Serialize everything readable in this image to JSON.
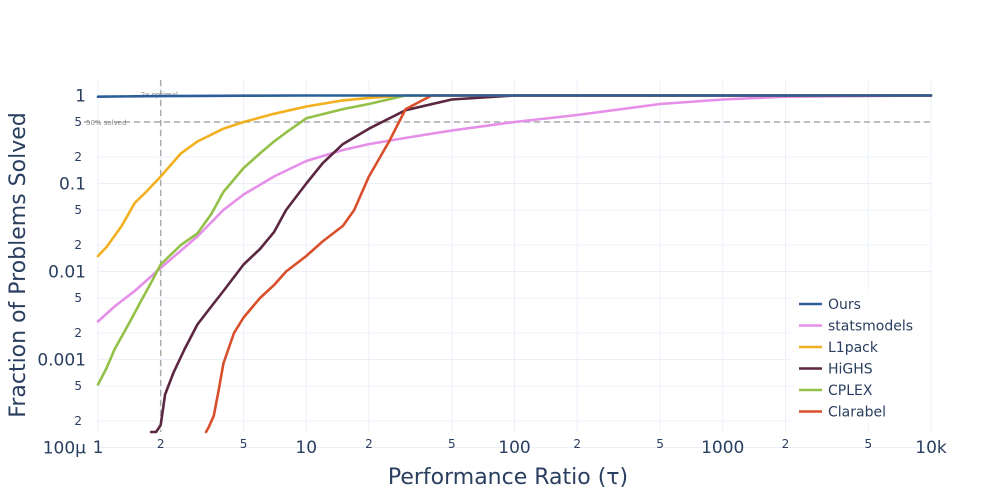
{
  "chart_data": {
    "type": "line",
    "title": "",
    "xlabel": "Performance Ratio (τ)",
    "ylabel": "Fraction of Problems Solved",
    "xscale": "log",
    "yscale": "log",
    "xlim": [
      0.95,
      10000
    ],
    "ylim": [
      0.00015,
      1.5
    ],
    "grid": true,
    "legend_position": "bottom-right",
    "x_major_ticks": [
      {
        "v": 1,
        "label": "1"
      },
      {
        "v": 10,
        "label": "10"
      },
      {
        "v": 100,
        "label": "100"
      },
      {
        "v": 1000,
        "label": "1000"
      },
      {
        "v": 10000,
        "label": "10k"
      }
    ],
    "x_minor_ticks": [
      {
        "v": 2,
        "label": "2"
      },
      {
        "v": 5,
        "label": "5"
      },
      {
        "v": 20,
        "label": "2"
      },
      {
        "v": 50,
        "label": "5"
      },
      {
        "v": 200,
        "label": "2"
      },
      {
        "v": 500,
        "label": "5"
      },
      {
        "v": 2000,
        "label": "2"
      },
      {
        "v": 5000,
        "label": "5"
      }
    ],
    "y_major_ticks": [
      {
        "v": 1,
        "label": "1"
      },
      {
        "v": 0.1,
        "label": "0.1"
      },
      {
        "v": 0.01,
        "label": "0.01"
      },
      {
        "v": 0.001,
        "label": "0.001"
      },
      {
        "v": 0.0001,
        "label": "100μ"
      }
    ],
    "y_minor_ticks": [
      {
        "v": 0.5,
        "label": "5"
      },
      {
        "v": 0.2,
        "label": "2"
      },
      {
        "v": 0.05,
        "label": "5"
      },
      {
        "v": 0.02,
        "label": "2"
      },
      {
        "v": 0.005,
        "label": "5"
      },
      {
        "v": 0.002,
        "label": "2"
      },
      {
        "v": 0.0005,
        "label": "5"
      },
      {
        "v": 0.0002,
        "label": "2"
      }
    ],
    "reference_lines": [
      {
        "axis": "x",
        "value": 2,
        "label": "2x optimal"
      },
      {
        "axis": "y",
        "value": 0.5,
        "label": "50% solved"
      }
    ],
    "series": [
      {
        "name": "Ours",
        "color": "#2c5f99",
        "x": [
          1,
          1.5,
          2,
          3,
          5,
          10,
          10000
        ],
        "y": [
          0.97,
          0.98,
          0.985,
          0.99,
          0.995,
          1.0,
          1.0
        ]
      },
      {
        "name": "statsmodels",
        "color": "#e58fe8",
        "x": [
          1,
          1.2,
          1.5,
          2,
          3,
          4,
          5,
          7,
          10,
          15,
          20,
          30,
          50,
          100,
          200,
          500,
          1000,
          2000,
          10000
        ],
        "y": [
          0.0027,
          0.004,
          0.006,
          0.011,
          0.025,
          0.05,
          0.075,
          0.12,
          0.18,
          0.24,
          0.28,
          0.33,
          0.4,
          0.5,
          0.6,
          0.8,
          0.9,
          0.97,
          1.0
        ]
      },
      {
        "name": "L1pack",
        "color": "#f2b01e",
        "x": [
          1,
          1.1,
          1.3,
          1.5,
          1.7,
          2,
          2.5,
          3,
          4,
          5,
          7,
          10,
          15,
          20,
          30,
          100,
          10000
        ],
        "y": [
          0.015,
          0.019,
          0.033,
          0.06,
          0.08,
          0.12,
          0.22,
          0.3,
          0.42,
          0.5,
          0.62,
          0.75,
          0.88,
          0.94,
          1.0,
          1.0,
          1.0
        ]
      },
      {
        "name": "HiGHS",
        "color": "#5a2640",
        "x": [
          1.8,
          1.85,
          1.9,
          2,
          2.1,
          2.3,
          2.6,
          3,
          3.5,
          4,
          5,
          6,
          7,
          8,
          10,
          12,
          15,
          20,
          30,
          50,
          100,
          10000
        ],
        "y": [
          0.00015,
          0.0001,
          0.00013,
          0.00018,
          0.0004,
          0.0007,
          0.0013,
          0.0025,
          0.004,
          0.006,
          0.012,
          0.018,
          0.028,
          0.05,
          0.1,
          0.17,
          0.28,
          0.42,
          0.68,
          0.9,
          1.0,
          1.0
        ]
      },
      {
        "name": "CPLEX",
        "color": "#93c047",
        "x": [
          1,
          1.1,
          1.2,
          1.4,
          1.6,
          1.8,
          2,
          2.5,
          3,
          3.5,
          4,
          5,
          6,
          7,
          8,
          10,
          15,
          20,
          30,
          10000
        ],
        "y": [
          0.00052,
          0.0008,
          0.0013,
          0.0025,
          0.0045,
          0.0075,
          0.012,
          0.02,
          0.027,
          0.045,
          0.08,
          0.15,
          0.22,
          0.3,
          0.38,
          0.55,
          0.7,
          0.8,
          1.0,
          1.0
        ]
      },
      {
        "name": "Clarabel",
        "color": "#d94e2b",
        "x": [
          3.3,
          3.4,
          3.6,
          3.8,
          4,
          4.5,
          5,
          6,
          7,
          8,
          10,
          12,
          15,
          17,
          20,
          25,
          30,
          40,
          10000
        ],
        "y": [
          0.00015,
          0.00017,
          0.00023,
          0.00045,
          0.0009,
          0.002,
          0.003,
          0.005,
          0.007,
          0.01,
          0.015,
          0.022,
          0.033,
          0.05,
          0.12,
          0.3,
          0.7,
          1.0,
          1.0
        ]
      }
    ]
  }
}
